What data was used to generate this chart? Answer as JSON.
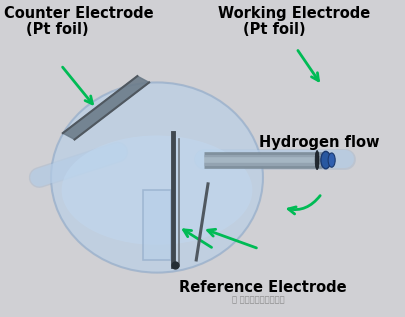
{
  "bg_color": "#d0d0d4",
  "flask_color": "#b8cfe8",
  "flask_edge_color": "#90aac8",
  "liquid_color": "#c0d8f0",
  "arrow_color": "#00bb55",
  "text_color": "#000000",
  "watermark_color": "#888888",
  "labels": {
    "counter_line1": "Counter Electrode",
    "counter_line2": "(Pt foil)",
    "working_line1": "Working Electrode",
    "working_line2": "(Pt foil)",
    "hydrogen": "Hydrogen flow",
    "reference": "Reference Electrode",
    "watermark": "光电化化理论与应用"
  }
}
